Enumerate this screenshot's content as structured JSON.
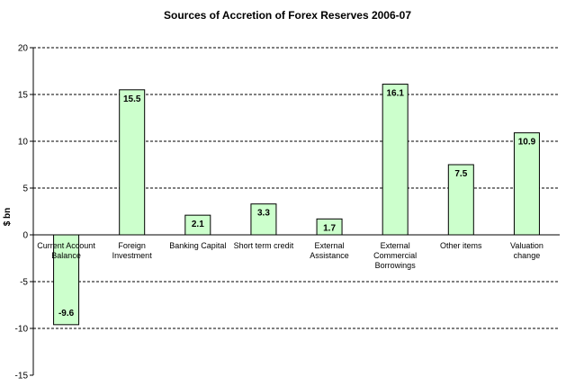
{
  "chart_data": {
    "type": "bar",
    "title": "Sources of Accretion of Forex Reserves 2006-07",
    "xlabel": "",
    "ylabel": "$ bn",
    "ylim": [
      -15,
      20
    ],
    "yticks": [
      20,
      15,
      10,
      5,
      0,
      -5,
      -10,
      -15
    ],
    "categories": [
      [
        "Current Account",
        "Balance"
      ],
      [
        "Foreign",
        "Investment"
      ],
      [
        "Banking Capital"
      ],
      [
        "Short term credit"
      ],
      [
        "External",
        "Assistance"
      ],
      [
        "External",
        "Commercial",
        "Borrowings"
      ],
      [
        "Other items"
      ],
      [
        "Valuation",
        "change"
      ]
    ],
    "values": [
      -9.6,
      15.5,
      2.1,
      3.3,
      1.7,
      16.1,
      7.5,
      10.9
    ],
    "data_labels": [
      "-9.6",
      "15.5",
      "2.1",
      "3.3",
      "1.7",
      "16.1",
      "7.5",
      "10.9"
    ],
    "grid": true,
    "legend": "none",
    "bar_fill": "#ccffcc",
    "bar_stroke": "#000000",
    "grid_color": "#000000"
  }
}
